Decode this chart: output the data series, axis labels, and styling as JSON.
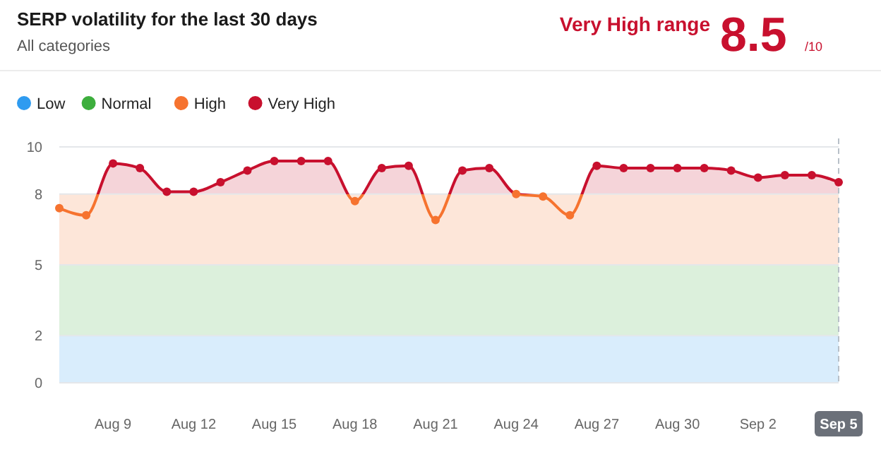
{
  "chart_data": {
    "type": "line",
    "title": "SERP volatility for the last 30 days",
    "subtitle": "All categories",
    "annotations": [
      "Very High range",
      "8.5",
      "/10"
    ],
    "x": [
      "--08-07",
      "--08-08",
      "--08-09",
      "--08-10",
      "--08-11",
      "--08-12",
      "--08-13",
      "--08-14",
      "--08-15",
      "--08-16",
      "--08-17",
      "--08-18",
      "--08-19",
      "--08-20",
      "--08-21",
      "--08-22",
      "--08-23",
      "--08-24",
      "--08-25",
      "--08-26",
      "--08-27",
      "--08-28",
      "--08-29",
      "--08-30",
      "--08-31",
      "--09-01",
      "--09-02",
      "--09-03",
      "--09-04",
      "--09-05"
    ],
    "series": [
      {
        "values": [
          7.4,
          7.1,
          9.3,
          9.1,
          8.1,
          8.1,
          8.5,
          9.0,
          9.4,
          9.4,
          9.4,
          7.7,
          9.1,
          9.2,
          6.9,
          9.0,
          9.1,
          8.0,
          7.9,
          7.1,
          9.2,
          9.1,
          9.1,
          9.1,
          9.1,
          9.0,
          8.7,
          8.8,
          8.8,
          8.5
        ]
      }
    ],
    "bands": [
      {
        "axis": "y",
        "from": 0,
        "to": 2,
        "label": "Low",
        "color": "#2e9bf0"
      },
      {
        "axis": "y",
        "from": 2,
        "to": 5,
        "label": "Normal",
        "color": "#3dae3d"
      },
      {
        "axis": "y",
        "from": 5,
        "to": 8,
        "label": "High",
        "color": "#f6732f"
      },
      {
        "axis": "y",
        "from": 8,
        "to": 10,
        "label": "Very High",
        "color": "#c8102e"
      }
    ],
    "ref_lines": [
      {
        "axis": "x",
        "value": "--09-05",
        "color": "#b8c0c8",
        "line_style": "dashed"
      }
    ],
    "xlim": [
      "--08-07",
      "--09-05"
    ],
    "xticks": [
      {
        "value": "--08-09",
        "label": "Aug 9"
      },
      {
        "value": "--08-12",
        "label": "Aug 12"
      },
      {
        "value": "--08-15",
        "label": "Aug 15"
      },
      {
        "value": "--08-18",
        "label": "Aug 18"
      },
      {
        "value": "--08-21",
        "label": "Aug 21"
      },
      {
        "value": "--08-24",
        "label": "Aug 24"
      },
      {
        "value": "--08-27",
        "label": "Aug 27"
      },
      {
        "value": "--08-30",
        "label": "Aug 30"
      },
      {
        "value": "--09-02",
        "label": "Sep 2"
      },
      {
        "value": "--09-05",
        "label": "Sep 5"
      }
    ],
    "ylim": [
      0,
      10
    ],
    "yticks": [
      0,
      2,
      5,
      8,
      10
    ],
    "grid": "y",
    "marker": "circle",
    "line_style": "solid",
    "legend": "top left"
  }
}
